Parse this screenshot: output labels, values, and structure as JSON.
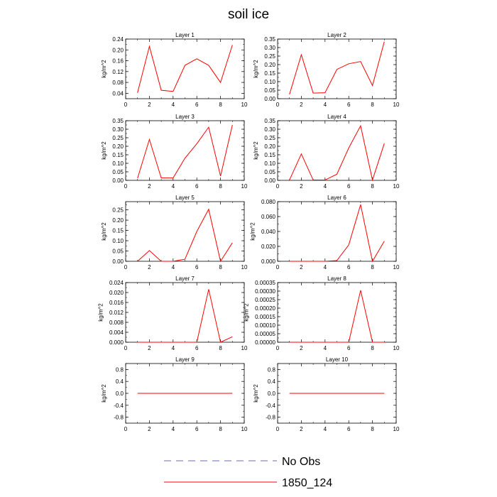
{
  "title": "soil ice",
  "colors": {
    "model": "#ff0000",
    "obs": "#6b6bb4",
    "axis": "#000000"
  },
  "legend": [
    {
      "label": "No Obs",
      "style": "dashed",
      "color": "#6b6bb4"
    },
    {
      "label": "1850_124",
      "style": "solid",
      "color": "#ff0000"
    }
  ],
  "chart_data": [
    {
      "type": "line",
      "title": "Layer 1",
      "ylabel": "kg/m^2",
      "xlim": [
        0,
        10
      ],
      "xticks": [
        "0",
        "2",
        "4",
        "6",
        "8",
        "10"
      ],
      "ylim": [
        0.02,
        0.24
      ],
      "yticks": [
        "0.04",
        "0.08",
        "0.12",
        "0.16",
        "0.20",
        "0.24"
      ],
      "series": [
        {
          "x": [
            1,
            2,
            3,
            4,
            5,
            6,
            7,
            8,
            9
          ],
          "y": [
            0.042,
            0.213,
            0.051,
            0.047,
            0.143,
            0.167,
            0.143,
            0.08,
            0.218
          ]
        }
      ]
    },
    {
      "type": "line",
      "title": "Layer 2",
      "ylabel": "kg/m^2",
      "xlim": [
        0,
        10
      ],
      "xticks": [
        "0",
        "2",
        "4",
        "6",
        "8",
        "10"
      ],
      "ylim": [
        0,
        0.35
      ],
      "yticks": [
        "0.00",
        "0.05",
        "0.10",
        "0.15",
        "0.20",
        "0.25",
        "0.30",
        "0.35"
      ],
      "series": [
        {
          "x": [
            1,
            2,
            3,
            4,
            5,
            6,
            7,
            8,
            9
          ],
          "y": [
            0.025,
            0.258,
            0.033,
            0.035,
            0.172,
            0.205,
            0.218,
            0.077,
            0.335
          ]
        }
      ]
    },
    {
      "type": "line",
      "title": "Layer 3",
      "ylabel": "kg/m^2",
      "xlim": [
        0,
        10
      ],
      "xticks": [
        "0",
        "2",
        "4",
        "6",
        "8",
        "10"
      ],
      "ylim": [
        0,
        0.35
      ],
      "yticks": [
        "0.00",
        "0.05",
        "0.10",
        "0.15",
        "0.20",
        "0.25",
        "0.30",
        "0.35"
      ],
      "series": [
        {
          "x": [
            1,
            2,
            3,
            4,
            5,
            6,
            7,
            8,
            9
          ],
          "y": [
            0.012,
            0.24,
            0.014,
            0.014,
            0.13,
            0.215,
            0.312,
            0.025,
            0.325
          ]
        }
      ]
    },
    {
      "type": "line",
      "title": "Layer 4",
      "ylabel": "kg/m^2",
      "xlim": [
        0,
        10
      ],
      "xticks": [
        "0",
        "2",
        "4",
        "6",
        "8",
        "10"
      ],
      "ylim": [
        0,
        0.35
      ],
      "yticks": [
        "0.00",
        "0.05",
        "0.10",
        "0.15",
        "0.20",
        "0.25",
        "0.30",
        "0.35"
      ],
      "series": [
        {
          "x": [
            1,
            2,
            3,
            4,
            5,
            6,
            7,
            8,
            9
          ],
          "y": [
            0.002,
            0.155,
            0.002,
            0.002,
            0.036,
            0.19,
            0.32,
            0.002,
            0.217
          ]
        }
      ]
    },
    {
      "type": "line",
      "title": "Layer 5",
      "ylabel": "kg/m^2",
      "xlim": [
        0,
        10
      ],
      "xticks": [
        "0",
        "2",
        "4",
        "6",
        "8",
        "10"
      ],
      "ylim": [
        0,
        0.29
      ],
      "yticks": [
        "0.00",
        "0.05",
        "0.10",
        "0.15",
        "0.20",
        "0.25"
      ],
      "series": [
        {
          "x": [
            1,
            2,
            3,
            4,
            5,
            6,
            7,
            8,
            9
          ],
          "y": [
            0.0,
            0.052,
            0.0,
            0.0,
            0.01,
            0.145,
            0.253,
            0.0,
            0.09
          ]
        }
      ]
    },
    {
      "type": "line",
      "title": "Layer 6",
      "ylabel": "kg/m^2",
      "xlim": [
        0,
        10
      ],
      "xticks": [
        "0",
        "2",
        "4",
        "6",
        "8",
        "10"
      ],
      "ylim": [
        0,
        0.08
      ],
      "yticks": [
        "0.000",
        "0.020",
        "0.040",
        "0.060",
        "0.080"
      ],
      "series": [
        {
          "x": [
            1,
            2,
            3,
            4,
            5,
            6,
            7,
            8,
            9
          ],
          "y": [
            0.0,
            0.0,
            0.0,
            0.0,
            0.001,
            0.022,
            0.076,
            0.0,
            0.027
          ]
        }
      ]
    },
    {
      "type": "line",
      "title": "Layer 7",
      "ylabel": "kg/m^2",
      "xlim": [
        0,
        10
      ],
      "xticks": [
        "0",
        "2",
        "4",
        "6",
        "8",
        "10"
      ],
      "ylim": [
        0,
        0.024
      ],
      "yticks": [
        "0.000",
        "0.004",
        "0.008",
        "0.012",
        "0.016",
        "0.020",
        "0.024"
      ],
      "series": [
        {
          "x": [
            1,
            2,
            3,
            4,
            5,
            6,
            7,
            8,
            9
          ],
          "y": [
            0.0,
            0.0,
            0.0,
            0.0,
            0.0,
            0.0,
            0.0213,
            0.0,
            0.0022
          ]
        }
      ]
    },
    {
      "type": "line",
      "title": "Layer 8",
      "ylabel": "kg/m^2",
      "xlim": [
        0,
        10
      ],
      "xticks": [
        "0",
        "2",
        "4",
        "6",
        "8",
        "10"
      ],
      "ylim": [
        0,
        0.00035
      ],
      "yticks": [
        "0.00000",
        "0.00005",
        "0.00010",
        "0.00015",
        "0.00020",
        "0.00025",
        "0.00030",
        "0.00035"
      ],
      "series": [
        {
          "x": [
            1,
            2,
            3,
            4,
            5,
            6,
            7,
            8,
            9
          ],
          "y": [
            0,
            0,
            0,
            0,
            0,
            0,
            0.000305,
            0,
            0
          ]
        }
      ]
    },
    {
      "type": "line",
      "title": "Layer 9",
      "ylabel": "kg/m^2",
      "xlim": [
        0,
        10
      ],
      "xticks": [
        "0",
        "2",
        "4",
        "6",
        "8",
        "10"
      ],
      "ylim": [
        -1,
        1
      ],
      "yticks": [
        "-0.8",
        "-0.4",
        "0.0",
        "0.4",
        "0.8"
      ],
      "series": [
        {
          "x": [
            1,
            2,
            3,
            4,
            5,
            6,
            7,
            8,
            9
          ],
          "y": [
            0,
            0,
            0,
            0,
            0,
            0,
            0,
            0,
            0
          ]
        }
      ]
    },
    {
      "type": "line",
      "title": "Layer 10",
      "ylabel": "kg/m^2",
      "xlim": [
        0,
        10
      ],
      "xticks": [
        "0",
        "2",
        "4",
        "6",
        "8",
        "10"
      ],
      "ylim": [
        -1,
        1
      ],
      "yticks": [
        "-0.8",
        "-0.4",
        "0.0",
        "0.4",
        "0.8"
      ],
      "series": [
        {
          "x": [
            1,
            2,
            3,
            4,
            5,
            6,
            7,
            8,
            9
          ],
          "y": [
            0,
            0,
            0,
            0,
            0,
            0,
            0,
            0,
            0
          ]
        }
      ]
    }
  ]
}
